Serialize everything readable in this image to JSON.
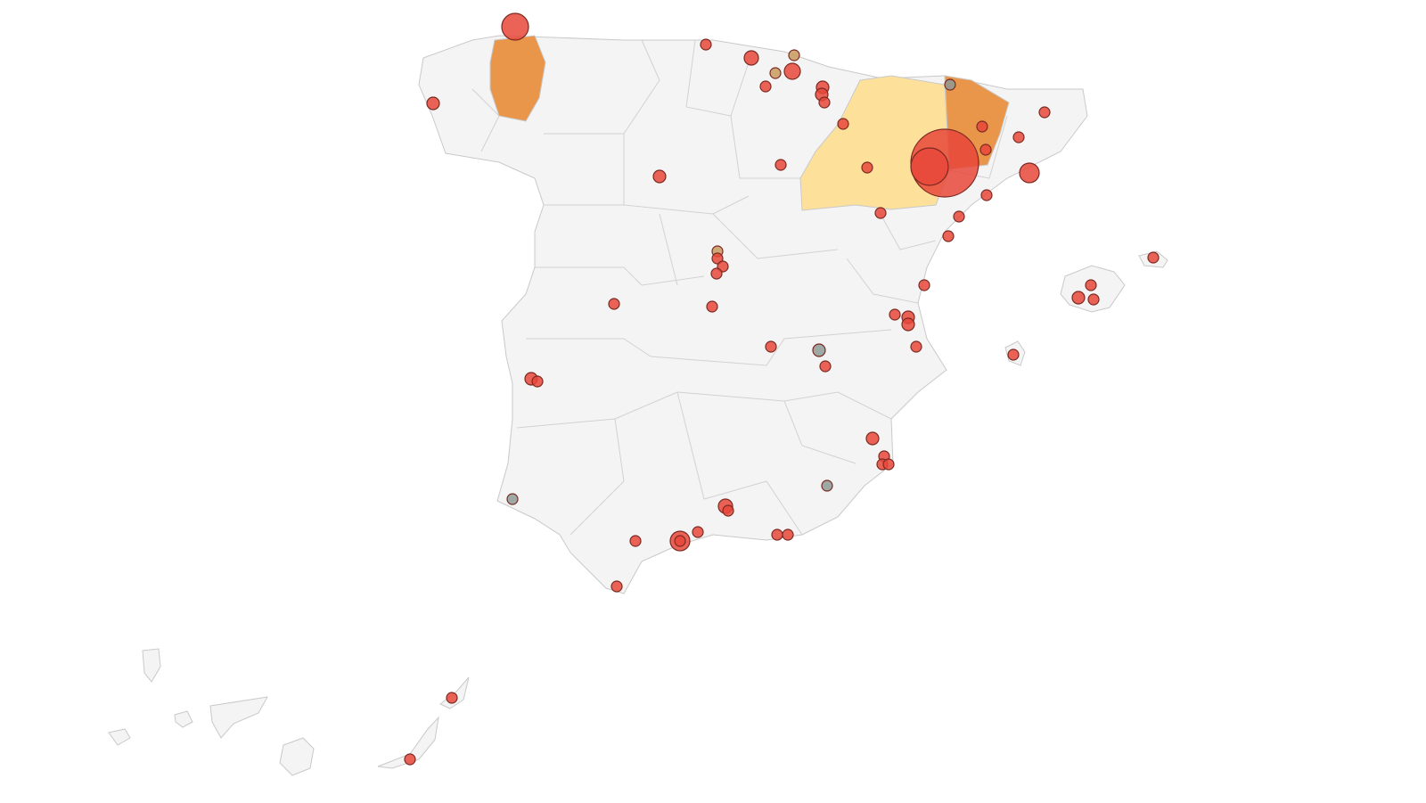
{
  "map": {
    "region": "Spain",
    "colors": {
      "land": "#f4f4f4",
      "border": "#c9c9c9",
      "region_high": "#e9964b",
      "region_medium": "#fde19a",
      "bubble_red": "#e8473a",
      "bubble_grey": "#8e9a97",
      "bubble_tan": "#c99a5e"
    },
    "highlighted_regions": [
      {
        "level": "high"
      },
      {
        "level": "medium"
      },
      {
        "level": "high"
      }
    ]
  }
}
